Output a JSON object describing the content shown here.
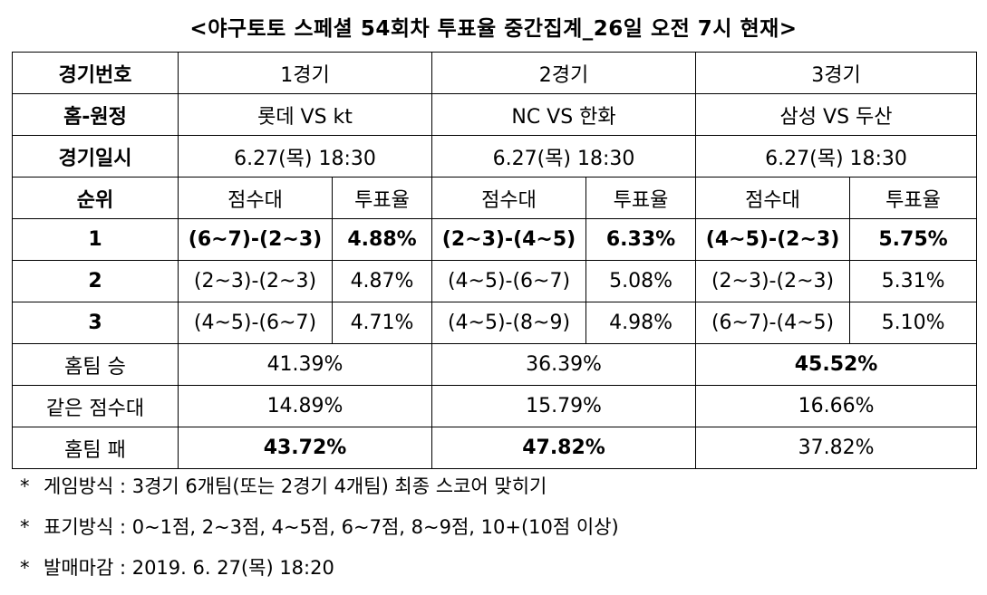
{
  "title": "<야구토토 스페셜 54회차 투표율 중간집계_26일 오전 7시 현재>",
  "row_headers": {
    "game_no": "경기번호",
    "home_away": "홈-원정",
    "game_datetime": "경기일시",
    "rank": "순위",
    "home_win": "홈팀 승",
    "same_score": "같은 점수대",
    "home_lose": "홈팀 패"
  },
  "sub_headers": {
    "score_range": "점수대",
    "vote_rate": "투표율"
  },
  "games": [
    {
      "label": "1경기",
      "matchup": "롯데 VS kt",
      "datetime": "6.27(목) 18:30",
      "home_win": "41.39%",
      "same_score": "14.89%",
      "home_lose": "43.72%"
    },
    {
      "label": "2경기",
      "matchup": "NC VS 한화",
      "datetime": "6.27(목) 18:30",
      "home_win": "36.39%",
      "same_score": "15.79%",
      "home_lose": "47.82%"
    },
    {
      "label": "3경기",
      "matchup": "삼성 VS 두산",
      "datetime": "6.27(목) 18:30",
      "home_win": "45.52%",
      "same_score": "16.66%",
      "home_lose": "37.82%"
    }
  ],
  "rankings": [
    {
      "rank": "1",
      "cells": [
        {
          "score": "(6~7)-(2~3)",
          "rate": "4.88%"
        },
        {
          "score": "(2~3)-(4~5)",
          "rate": "6.33%"
        },
        {
          "score": "(4~5)-(2~3)",
          "rate": "5.75%"
        }
      ]
    },
    {
      "rank": "2",
      "cells": [
        {
          "score": "(2~3)-(2~3)",
          "rate": "4.87%"
        },
        {
          "score": "(4~5)-(6~7)",
          "rate": "5.08%"
        },
        {
          "score": "(2~3)-(2~3)",
          "rate": "5.31%"
        }
      ]
    },
    {
      "rank": "3",
      "cells": [
        {
          "score": "(4~5)-(6~7)",
          "rate": "4.71%"
        },
        {
          "score": "(4~5)-(8~9)",
          "rate": "4.98%"
        },
        {
          "score": "(6~7)-(4~5)",
          "rate": "5.10%"
        }
      ]
    }
  ],
  "notes": [
    {
      "bullet": "*",
      "text": "게임방식 : 3경기 6개팀(또는 2경기 4개팀) 최종 스코어 맞히기"
    },
    {
      "bullet": "*",
      "text": "표기방식 : 0~1점, 2~3점, 4~5점, 6~7점, 8~9점, 10+(10점 이상)"
    },
    {
      "bullet": "*",
      "text": "발매마감 : 2019. 6. 27(목) 18:20"
    }
  ]
}
